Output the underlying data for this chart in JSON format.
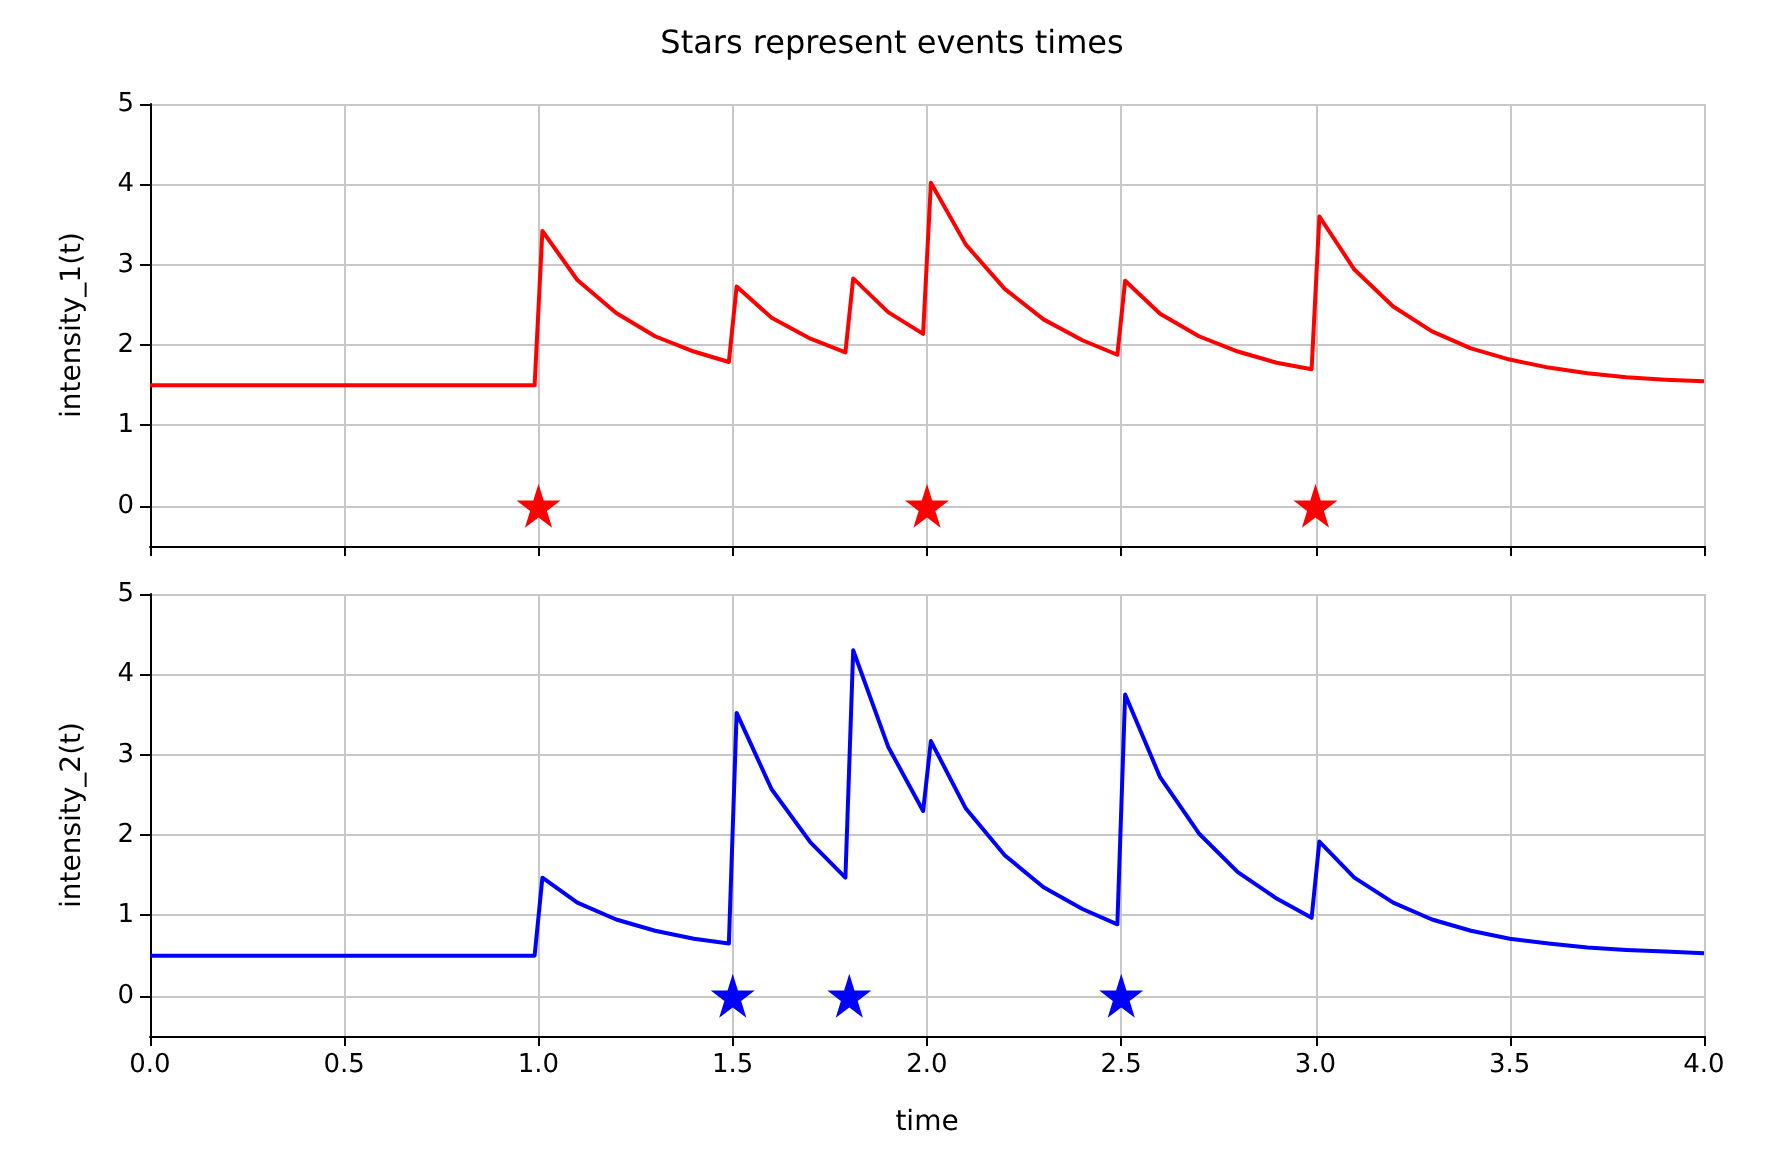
{
  "chart_data": [
    {
      "type": "line",
      "title": "Stars represent events times",
      "ylabel": "intensity_1(t)",
      "xlim": [
        0,
        4
      ],
      "xticks": [
        0,
        0.5,
        1,
        1.5,
        2,
        2.5,
        3,
        3.5,
        4
      ],
      "ylim": [
        -0.5,
        5
      ],
      "yticks": [
        0,
        1,
        2,
        3,
        4,
        5
      ],
      "grid": true,
      "tick_labels": "y",
      "line_style": "solid",
      "series": [
        {
          "type": "line",
          "color": "#ff0000",
          "marker": "none",
          "x": [
            0,
            0.99,
            1.01,
            1.1,
            1.2,
            1.3,
            1.4,
            1.49,
            1.51,
            1.6,
            1.7,
            1.79,
            1.81,
            1.9,
            1.99,
            2.01,
            2.1,
            2.2,
            2.3,
            2.4,
            2.49,
            2.51,
            2.6,
            2.7,
            2.8,
            2.9,
            2.99,
            3.01,
            3.1,
            3.2,
            3.3,
            3.4,
            3.5,
            3.6,
            3.7,
            3.8,
            3.9,
            4
          ],
          "values": [
            1.5,
            1.5,
            3.42,
            2.81,
            2.4,
            2.11,
            1.92,
            1.79,
            2.73,
            2.34,
            2.08,
            1.91,
            2.83,
            2.41,
            2.14,
            4.02,
            3.25,
            2.7,
            2.32,
            2.06,
            1.88,
            2.8,
            2.39,
            2.11,
            1.92,
            1.78,
            1.7,
            3.6,
            2.94,
            2.48,
            2.17,
            1.96,
            1.82,
            1.72,
            1.65,
            1.6,
            1.57,
            1.55
          ]
        },
        {
          "type": "scatter",
          "color": "#ff0000",
          "marker": "star",
          "x": [
            1,
            2,
            3
          ],
          "values": [
            0,
            0,
            0
          ]
        }
      ]
    },
    {
      "type": "line",
      "xlabel": "time",
      "ylabel": "intensity_2(t)",
      "xlim": [
        0,
        4
      ],
      "xticks": [
        {
          "value": 0,
          "label": "0.0"
        },
        0.5,
        {
          "value": 1,
          "label": "1.0"
        },
        1.5,
        {
          "value": 2,
          "label": "2.0"
        },
        2.5,
        {
          "value": 3,
          "label": "3.0"
        },
        3.5,
        {
          "value": 4,
          "label": "4.0"
        }
      ],
      "ylim": [
        -0.5,
        5
      ],
      "yticks": [
        0,
        1,
        2,
        3,
        4,
        5
      ],
      "grid": true,
      "line_style": "solid",
      "series": [
        {
          "type": "line",
          "color": "#0000ff",
          "marker": "none",
          "x": [
            0,
            0.99,
            1.01,
            1.1,
            1.2,
            1.3,
            1.4,
            1.49,
            1.51,
            1.6,
            1.7,
            1.79,
            1.81,
            1.9,
            1.99,
            2.01,
            2.1,
            2.2,
            2.3,
            2.4,
            2.49,
            2.51,
            2.6,
            2.7,
            2.8,
            2.9,
            2.99,
            3.01,
            3.1,
            3.2,
            3.3,
            3.4,
            3.5,
            3.6,
            3.7,
            3.8,
            3.9,
            4
          ],
          "values": [
            0.5,
            0.5,
            1.47,
            1.16,
            0.95,
            0.81,
            0.71,
            0.65,
            3.52,
            2.57,
            1.91,
            1.47,
            4.3,
            3.1,
            2.3,
            3.17,
            2.33,
            1.75,
            1.35,
            1.08,
            0.89,
            3.75,
            2.72,
            2.02,
            1.54,
            1.21,
            0.97,
            1.92,
            1.47,
            1.16,
            0.95,
            0.81,
            0.71,
            0.65,
            0.6,
            0.57,
            0.55,
            0.53
          ]
        },
        {
          "type": "scatter",
          "color": "#0000ff",
          "marker": "star",
          "x": [
            1.5,
            1.8,
            2.5
          ],
          "values": [
            0,
            0,
            0
          ]
        }
      ]
    }
  ]
}
